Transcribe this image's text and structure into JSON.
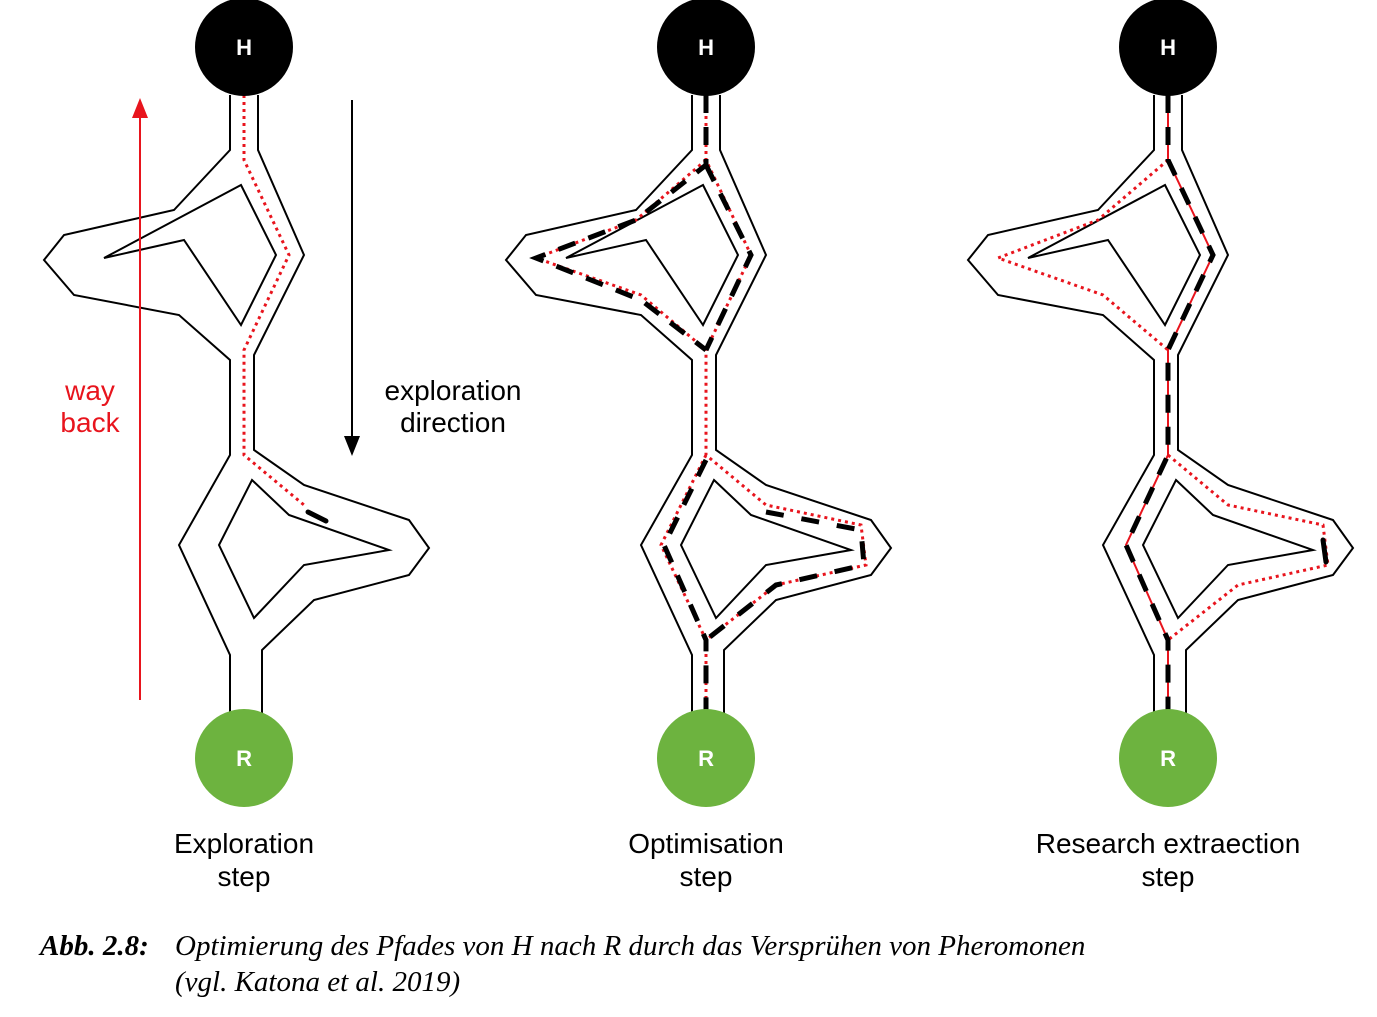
{
  "colors": {
    "home_node": "#000000",
    "resource_node": "#6db33f",
    "red": "#e8141d",
    "ink": "#000000"
  },
  "nodes": {
    "home_label": "H",
    "resource_label": "R"
  },
  "panels": [
    {
      "step_label_line1": "Exploration",
      "step_label_line2": "step"
    },
    {
      "step_label_line1": "Optimisation",
      "step_label_line2": "step"
    },
    {
      "step_label_line1": "Research extraection",
      "step_label_line2": "step"
    }
  ],
  "arrows": {
    "way_back_line1": "way",
    "way_back_line2": "back",
    "exploration_line1": "exploration",
    "exploration_line2": "direction"
  },
  "caption": {
    "number": "Abb. 2.8:",
    "line1": "Optimierung des Pfades von H nach R durch das Versprühen von Pheromonen",
    "line2": "(vgl. Katona et al. 2019)"
  }
}
